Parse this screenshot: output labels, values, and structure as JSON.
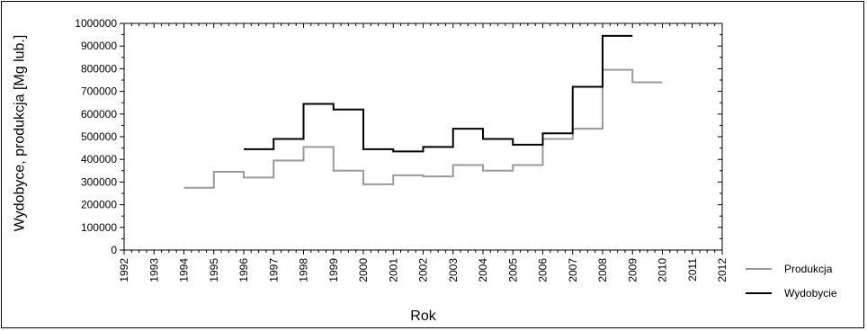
{
  "chart_data": {
    "type": "line",
    "step": true,
    "title": "",
    "xlabel": "Rok",
    "ylabel": "Wydobyce, produkcja [Mg lub.]",
    "xlim": [
      1992,
      2012
    ],
    "ylim": [
      0,
      1000000
    ],
    "x_ticks": [
      "1992",
      "1993",
      "1994",
      "1995",
      "1996",
      "1997",
      "1998",
      "1999",
      "2000",
      "2001",
      "2002",
      "2003",
      "2004",
      "2005",
      "2006",
      "2007",
      "2008",
      "2009",
      "2010",
      "2011",
      "2012"
    ],
    "y_ticks": [
      "0",
      "100000",
      "200000",
      "300000",
      "400000",
      "500000",
      "600000",
      "700000",
      "800000",
      "900000",
      "1000000"
    ],
    "legend_position": "right",
    "grid": false,
    "series": [
      {
        "name": "Produkcja",
        "color": "#9a9a9a",
        "x": [
          1994,
          1995,
          1996,
          1997,
          1998,
          1999,
          2000,
          2001,
          2002,
          2003,
          2004,
          2005,
          2006,
          2007,
          2008,
          2009,
          2010
        ],
        "values": [
          275000,
          345000,
          320000,
          395000,
          455000,
          350000,
          290000,
          330000,
          325000,
          375000,
          350000,
          375000,
          490000,
          535000,
          795000,
          740000,
          740000
        ]
      },
      {
        "name": "Wydobycie",
        "color": "#000000",
        "x": [
          1996,
          1997,
          1998,
          1999,
          2000,
          2001,
          2002,
          2003,
          2004,
          2005,
          2006,
          2007,
          2008,
          2009
        ],
        "values": [
          445000,
          490000,
          645000,
          620000,
          445000,
          435000,
          455000,
          535000,
          490000,
          465000,
          515000,
          720000,
          945000,
          1000000
        ]
      }
    ]
  }
}
